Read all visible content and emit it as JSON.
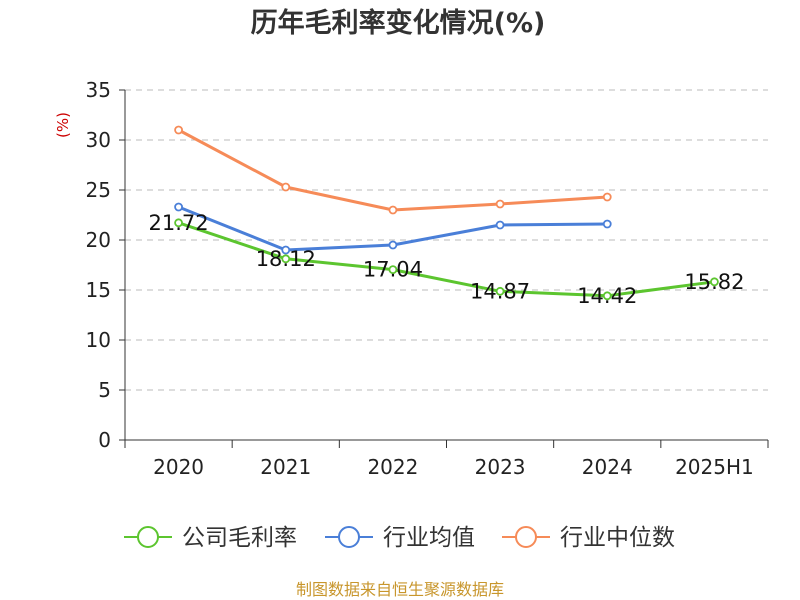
{
  "chart_data": {
    "type": "line",
    "title": "历年毛利率变化情况(%)",
    "ylabel": "(%)",
    "xlabel": "",
    "categories": [
      "2020",
      "2021",
      "2022",
      "2023",
      "2024",
      "2025H1"
    ],
    "ylim": [
      0,
      35
    ],
    "yticks": [
      0,
      5,
      10,
      15,
      20,
      25,
      30,
      35
    ],
    "grid": true,
    "legend_position": "bottom",
    "series": [
      {
        "name": "公司毛利率",
        "color": "#5cc52f",
        "values": [
          21.72,
          18.12,
          17.04,
          14.87,
          14.42,
          15.82
        ],
        "data_labels": [
          "21.72",
          "18.12",
          "17.04",
          "14.87",
          "14.42",
          "15.82"
        ]
      },
      {
        "name": "行业均值",
        "color": "#4a7fd8",
        "values": [
          23.3,
          19.0,
          19.5,
          21.5,
          21.6,
          null
        ]
      },
      {
        "name": "行业中位数",
        "color": "#f68b58",
        "values": [
          31.0,
          25.3,
          23.0,
          23.6,
          24.3,
          null
        ]
      }
    ]
  },
  "source": "制图数据来自恒生聚源数据库"
}
